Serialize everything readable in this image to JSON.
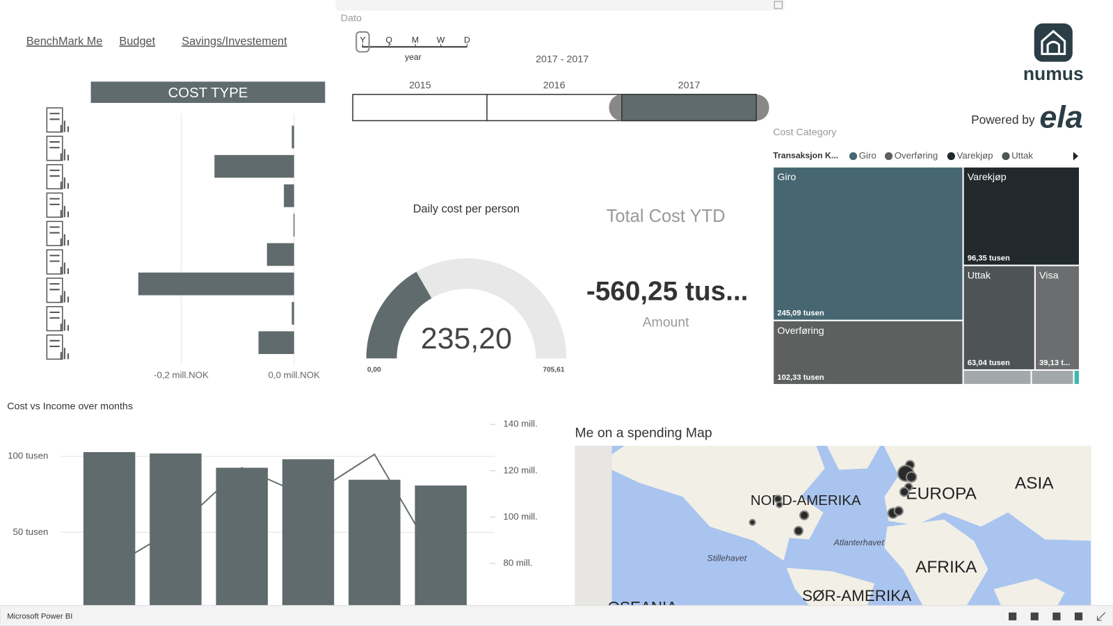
{
  "nav": [
    "BenchMark Me",
    "Budget",
    "Savings/Investement"
  ],
  "logo": {
    "name": "numus",
    "powered_by": "Powered by",
    "partner": "ela"
  },
  "slicer": {
    "title": "Dato",
    "granularity": [
      "Y",
      "Q",
      "M",
      "W",
      "D"
    ],
    "selected_granularity": "Y",
    "granularity_label": "year",
    "range": "2017 - 2017",
    "years": [
      "2015",
      "2016",
      "2017"
    ],
    "selected": "2017"
  },
  "kpi": {
    "title": "Total Cost YTD",
    "value": "-560,25 tus...",
    "label": "Amount"
  },
  "map": {
    "title": "Me on a spending Map",
    "labels": [
      "NORD-AMERIKA",
      "EUROPA",
      "ASIA",
      "AFRIKA",
      "SØR-AMERIKA",
      "OSEANIA",
      "Atlanterhavet",
      "Stillehavet"
    ]
  },
  "taskbar": {
    "app": "Microsoft Power BI"
  },
  "chart_data": [
    {
      "type": "bar",
      "orientation": "horizontal",
      "title": "COST TYPE",
      "categories": [
        null,
        null,
        null,
        null,
        null,
        null,
        null,
        null
      ],
      "values": [
        -0.004,
        -0.141,
        -0.018,
        -0.001,
        -0.048,
        -0.276,
        -0.004,
        -0.063
      ],
      "color": "#5f6b6d",
      "xlim": [
        -0.36,
        0.055
      ],
      "xticks": [
        {
          "value": -0.2,
          "label": "-0,2 mill.NOK"
        },
        {
          "value": 0,
          "label": "0,0 mill.NOK"
        }
      ],
      "grid": true
    },
    {
      "type": "gauge",
      "title": "Daily cost per person",
      "value": 235.2,
      "value_label": "235,20",
      "min": {
        "value": 0,
        "label": "0,00"
      },
      "max": {
        "value": 705.61,
        "label": "705,61"
      },
      "color": "#5f6b6d",
      "track_color": "#e8e8e8"
    },
    {
      "type": "treemap",
      "title": "Cost Category",
      "legend_title": "Transaksjon K...",
      "categories": [
        "Giro",
        "Overføring",
        "Varekjøp",
        "Uttak",
        "Visa",
        null,
        null,
        null
      ],
      "values": [
        245.09,
        102.33,
        96.35,
        63.04,
        39.13,
        8.37,
        5.22,
        0.72
      ],
      "value_labels": [
        "245,09 tusen",
        "102,33 tusen",
        "96,35 tusen",
        "63,04 tusen",
        "39,13 t...",
        null,
        null,
        null
      ],
      "colors": [
        "#466771",
        "#5e6060",
        "#21292c",
        "#4e5456",
        "#6b6d6e",
        "#a3a9ab",
        "#a3a9ab",
        "#3fb8b0"
      ]
    },
    {
      "type": "combo",
      "title": "Cost vs Income over months",
      "categories": [
        null,
        null,
        null,
        null,
        null,
        null
      ],
      "series": [
        {
          "type": "bar",
          "color": "#5f6b6d",
          "values": [
            102.8,
            101.9,
            92.5,
            98.1,
            84.6,
            80.8
          ]
        },
        {
          "type": "line",
          "axis": "y2",
          "color": "#6b6f70",
          "values": [
            78.0,
            94.9,
            121.3,
            108.7,
            127.1,
            78.0
          ]
        }
      ],
      "ylim": [
        0,
        125
      ],
      "yticks": [
        {
          "value": 50,
          "label": "50 tusen"
        },
        {
          "value": 100,
          "label": "100 tusen"
        }
      ],
      "y2lim": [
        60.6,
        142.6
      ],
      "y2ticks": [
        {
          "value": 80,
          "label": "80 mill."
        },
        {
          "value": 100,
          "label": "100 mill."
        },
        {
          "value": 120,
          "label": "120 mill."
        },
        {
          "value": 140,
          "label": "140 mill."
        }
      ],
      "grid": true
    }
  ]
}
